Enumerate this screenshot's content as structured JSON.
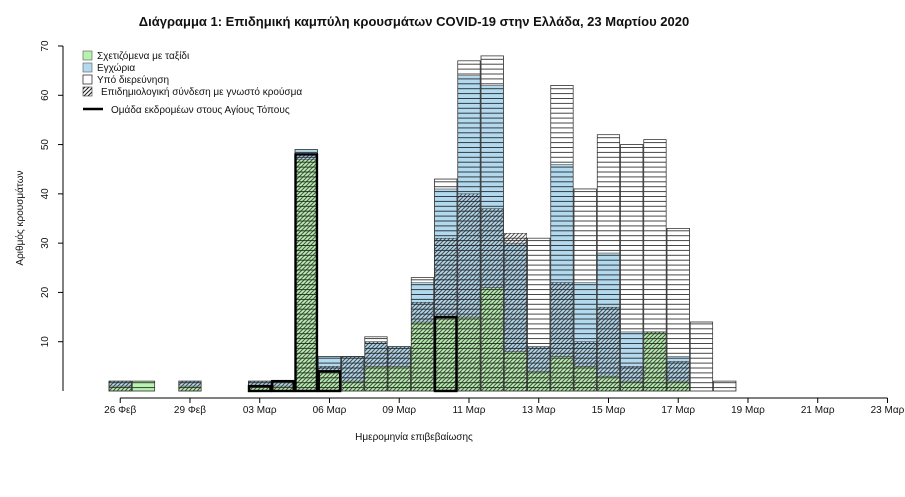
{
  "chart_data": {
    "type": "bar",
    "title": "Διάγραμμα 1: Επιδημική καμπύλη κρουσμάτων COVID-19 στην Ελλάδα, 23 Μαρτίου 2020",
    "xlabel": "Ημερομηνία επιβεβαίωσης",
    "ylabel": "Αριθμός κρουσμάτων",
    "ylim": [
      0,
      70
    ],
    "yticks": [
      10,
      20,
      30,
      40,
      50,
      60,
      70
    ],
    "tick_labels": [
      "26 Φεβ",
      "29 Φεβ",
      "03 Μαρ",
      "06 Μαρ",
      "09 Μαρ",
      "11 Μαρ",
      "13 Μαρ",
      "15 Μαρ",
      "17 Μαρ",
      "19 Μαρ",
      "21 Μαρ",
      "23 Μαρ"
    ],
    "categories": [
      "26 Φεβ",
      "27 Φεβ",
      "28 Φεβ",
      "29 Φεβ",
      "01 Μαρ",
      "02 Μαρ",
      "03 Μαρ",
      "04 Μαρ",
      "05 Μαρ",
      "06 Μαρ",
      "07 Μαρ",
      "08 Μαρ",
      "09 Μαρ",
      "10 Μαρ",
      "11 Μαρ",
      "12 Μαρ",
      "13 Μαρ",
      "14 Μαρ",
      "15 Μαρ",
      "16 Μαρ",
      "17 Μαρ",
      "18 Μαρ",
      "19 Μαρ",
      "20 Μαρ",
      "21 Μαρ",
      "22 Μαρ",
      "23 Μαρ"
    ],
    "series": [
      {
        "name": "Σχετιζόμενα με ταξίδι",
        "color": "#b9f2b0",
        "values": [
          1,
          2,
          0,
          1,
          0,
          0,
          1,
          1,
          47,
          4,
          2,
          5,
          5,
          14,
          15,
          15,
          21,
          8,
          4,
          7,
          5,
          3,
          2,
          12,
          2,
          0,
          0
        ]
      },
      {
        "name": "Εγχώρια",
        "color": "#b3d9ee",
        "values": [
          1,
          0,
          0,
          1,
          0,
          0,
          1,
          1,
          2,
          3,
          5,
          5,
          4,
          8,
          26,
          49,
          41,
          22,
          5,
          39,
          17,
          25,
          10,
          0,
          5,
          0,
          0
        ]
      },
      {
        "name": "Υπό διερεύνηση",
        "color": "#ffffff",
        "values": [
          0,
          0,
          0,
          0,
          0,
          0,
          0,
          0,
          0,
          0,
          0,
          1,
          0,
          1,
          2,
          3,
          6,
          1,
          22,
          16,
          19,
          24,
          38,
          39,
          26,
          14,
          2
        ]
      }
    ],
    "epi_linked": [
      2,
      0,
      0,
      2,
      0,
      0,
      2,
      2,
      48,
      5,
      7,
      10,
      9,
      18,
      31,
      40,
      37,
      32,
      9,
      22,
      10,
      17,
      5,
      12,
      6,
      0,
      0
    ],
    "epi_legend": "Επιδημιολογική σύνδεση με γνωστό κρούσμα",
    "line_legend": "Ομάδα εκδρομέων στους Αγίους Τόπους",
    "outbreak_group": [
      0,
      0,
      0,
      0,
      0,
      0,
      1,
      2,
      48,
      4,
      0,
      0,
      0,
      0,
      15,
      0,
      0,
      0,
      0,
      0,
      0,
      0,
      0,
      0,
      0,
      0,
      0
    ],
    "legend_position": "top-left",
    "grid": false
  }
}
